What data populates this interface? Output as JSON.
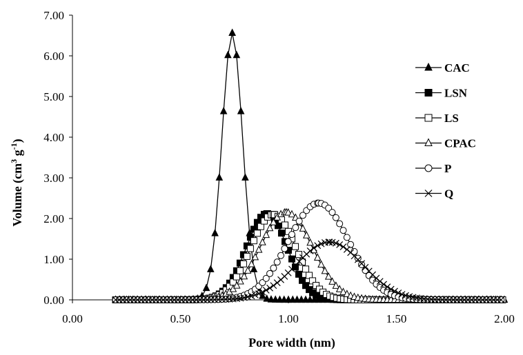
{
  "chart_data": {
    "type": "line",
    "title": "",
    "xlabel": "Pore width (nm)",
    "ylabel_main": "Volume (cm",
    "ylabel_sup1": "3",
    "ylabel_mid": " g",
    "ylabel_sup2": "-1",
    "ylabel_end": ")",
    "xlim": [
      0,
      2
    ],
    "ylim": [
      0,
      7
    ],
    "grid": false,
    "legend_position": "right",
    "x_ticks": [
      "0.00",
      "0.50",
      "1.00",
      "1.50",
      "2.00"
    ],
    "y_ticks": [
      "0.00",
      "1.00",
      "2.00",
      "3.00",
      "4.00",
      "5.00",
      "6.00",
      "7.00"
    ],
    "series": [
      {
        "name": "CAC",
        "marker": "triangle-filled",
        "mu": 0.74,
        "sigma": 0.048,
        "peak": 6.56,
        "step": 0.02,
        "range": [
          0.2,
          2.0
        ],
        "color": "#000000"
      },
      {
        "name": "LSN",
        "marker": "square-filled",
        "mu": 0.9,
        "sigma": 0.095,
        "peak": 2.12,
        "step": 0.016,
        "range": [
          0.2,
          2.0
        ],
        "color": "#000000"
      },
      {
        "name": "LS",
        "marker": "square-open",
        "mu": 0.93,
        "sigma": 0.105,
        "peak": 2.1,
        "step": 0.016,
        "range": [
          0.2,
          2.0
        ],
        "color": "#000000"
      },
      {
        "name": "CPAC",
        "marker": "triangle-open",
        "mu": 0.99,
        "sigma": 0.12,
        "peak": 2.15,
        "step": 0.017,
        "range": [
          0.2,
          2.0
        ],
        "color": "#000000"
      },
      {
        "name": "P",
        "marker": "circle-open",
        "mu": 1.14,
        "sigma": 0.14,
        "peak": 2.38,
        "step": 0.017,
        "range": [
          0.2,
          2.0
        ],
        "color": "#000000"
      },
      {
        "name": "Q",
        "marker": "x",
        "mu": 1.19,
        "sigma": 0.155,
        "peak": 1.42,
        "step": 0.017,
        "range": [
          0.2,
          2.0
        ],
        "color": "#000000"
      }
    ]
  }
}
